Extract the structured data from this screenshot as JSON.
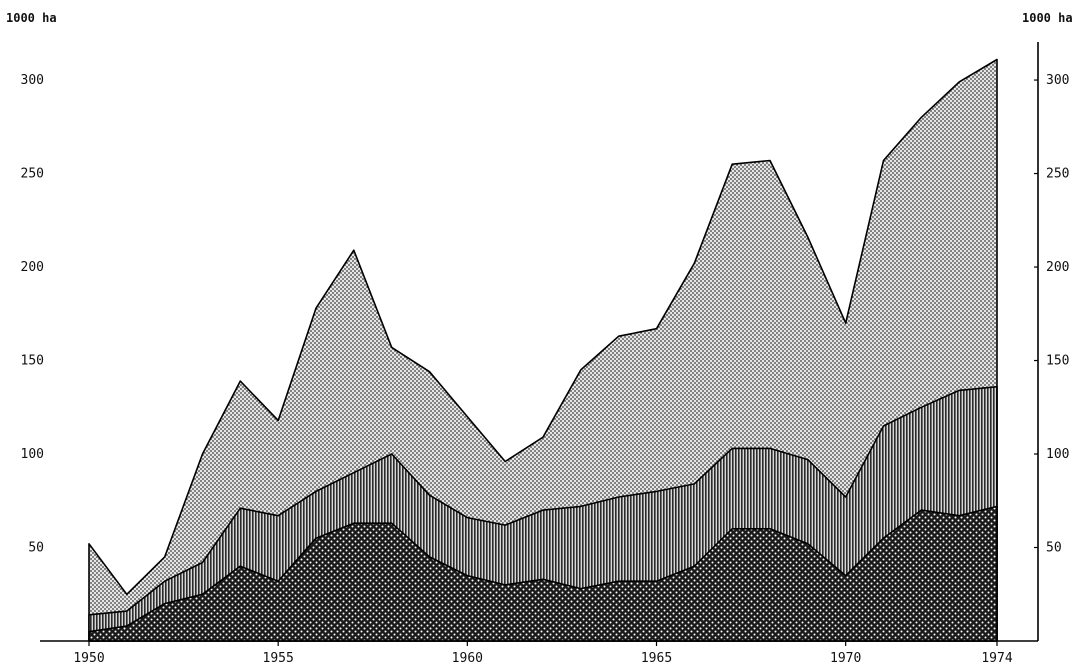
{
  "chart_data": {
    "type": "area",
    "stacked": true,
    "title": "",
    "xlabel": "",
    "ylabel_left": "1000 ha",
    "ylabel_right": "1000 ha",
    "xlim": [
      1950,
      1974
    ],
    "ylim": [
      0,
      315
    ],
    "x_ticks": [
      "1950",
      "1955",
      "1960",
      "1965",
      "1970",
      "1974"
    ],
    "y_ticks_left": [
      "50",
      "100",
      "150",
      "200",
      "250",
      "300"
    ],
    "y_ticks_right": [
      "50",
      "100",
      "150",
      "200",
      "250",
      "300"
    ],
    "grid": false,
    "legend": "none",
    "x": [
      1950,
      1951,
      1952,
      1953,
      1954,
      1955,
      1956,
      1957,
      1958,
      1959,
      1960,
      1961,
      1962,
      1963,
      1964,
      1965,
      1966,
      1967,
      1968,
      1969,
      1970,
      1971,
      1972,
      1973,
      1974
    ],
    "series": [
      {
        "pattern": "crosshatch-dark",
        "totals": [
          5,
          8,
          20,
          25,
          40,
          32,
          55,
          63,
          63,
          45,
          35,
          30,
          33,
          28,
          32,
          32,
          40,
          60,
          60,
          52,
          35,
          55,
          70,
          67,
          72
        ]
      },
      {
        "pattern": "vertical-lines",
        "totals": [
          14,
          16,
          32,
          42,
          71,
          67,
          80,
          90,
          100,
          78,
          66,
          62,
          70,
          72,
          77,
          80,
          84,
          103,
          103,
          97,
          77,
          115,
          125,
          134,
          136
        ]
      },
      {
        "pattern": "fine-dots",
        "totals": [
          52,
          25,
          45,
          100,
          139,
          118,
          178,
          209,
          157,
          144,
          120,
          96,
          109,
          145,
          163,
          167,
          202,
          255,
          257,
          216,
          170,
          257,
          280,
          299,
          311
        ]
      }
    ],
    "colors": {
      "crosshatch": "#1a1a1a",
      "vertical": "#2b2b2b",
      "dots": "#3a3a3a",
      "outline": "#000000"
    }
  }
}
